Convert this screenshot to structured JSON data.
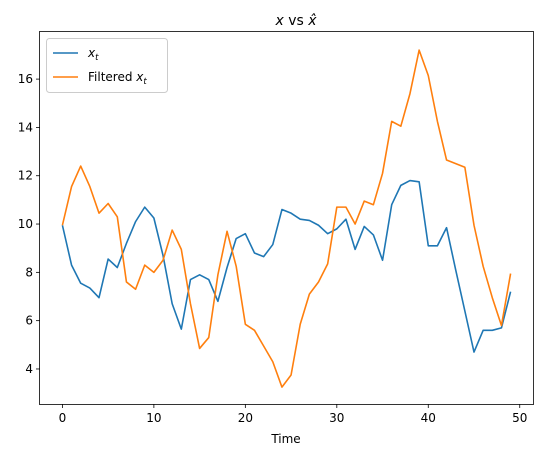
{
  "chart_data": {
    "type": "line",
    "title": "x vs x̂",
    "xlabel": "Time",
    "ylabel": "",
    "xlim": [
      -2.45,
      51.45
    ],
    "ylim": [
      2.55,
      17.95
    ],
    "xticks": [
      0,
      10,
      20,
      30,
      40,
      50
    ],
    "yticks": [
      4,
      6,
      8,
      10,
      12,
      14,
      16
    ],
    "grid": false,
    "legend_position": "upper-left",
    "x": [
      0,
      1,
      2,
      3,
      4,
      5,
      6,
      7,
      8,
      9,
      10,
      11,
      12,
      13,
      14,
      15,
      16,
      17,
      18,
      19,
      20,
      21,
      22,
      23,
      24,
      25,
      26,
      27,
      28,
      29,
      30,
      31,
      32,
      33,
      34,
      35,
      36,
      37,
      38,
      39,
      40,
      41,
      42,
      43,
      44,
      45,
      46,
      47,
      48,
      49
    ],
    "series": [
      {
        "name": "x_t",
        "legend_base": "x",
        "legend_sub": "t",
        "color": "#1f77b4",
        "values": [
          9.95,
          8.3,
          7.55,
          7.35,
          6.95,
          8.55,
          8.2,
          9.2,
          10.1,
          10.7,
          10.25,
          8.7,
          6.7,
          5.65,
          7.7,
          7.9,
          7.7,
          6.8,
          8.2,
          9.4,
          9.6,
          8.8,
          8.65,
          9.15,
          10.6,
          10.45,
          10.2,
          10.15,
          9.95,
          9.6,
          9.8,
          10.2,
          8.95,
          9.9,
          9.55,
          8.5,
          10.8,
          11.6,
          11.8,
          11.75,
          9.1,
          9.1,
          9.85,
          8.1,
          6.4,
          4.7,
          5.6,
          5.6,
          5.7,
          7.2
        ]
      },
      {
        "name": "Filtered x_t",
        "legend_base": "Filtered x",
        "legend_sub": "t",
        "color": "#ff7f0e",
        "values": [
          9.95,
          11.55,
          12.4,
          11.55,
          10.45,
          10.85,
          10.3,
          7.6,
          7.3,
          8.3,
          8.0,
          8.5,
          9.75,
          8.95,
          6.7,
          4.85,
          5.3,
          7.9,
          9.7,
          8.25,
          5.85,
          5.6,
          4.95,
          4.3,
          3.25,
          3.75,
          5.85,
          7.1,
          7.6,
          8.35,
          10.7,
          10.7,
          10.0,
          10.95,
          10.8,
          12.1,
          14.25,
          14.05,
          15.4,
          17.2,
          16.15,
          14.25,
          12.65,
          12.5,
          12.35,
          9.95,
          8.25,
          6.95,
          5.8,
          7.95
        ]
      }
    ]
  }
}
